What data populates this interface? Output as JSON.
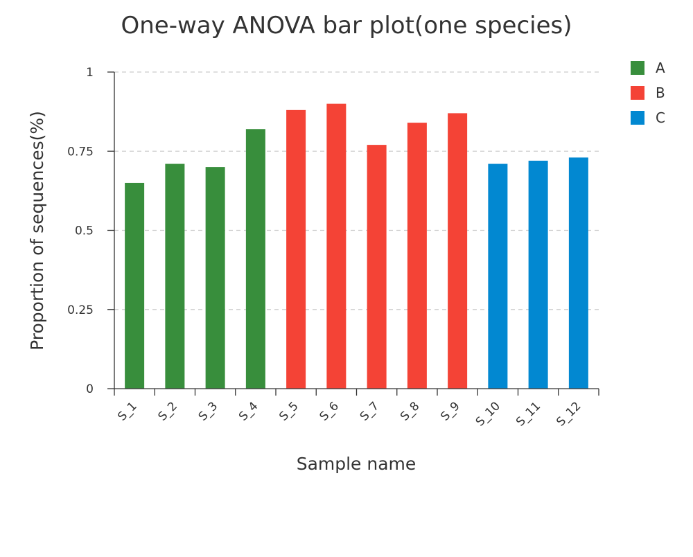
{
  "chart_data": {
    "type": "bar",
    "title": "One-way ANOVA bar plot(one species)",
    "xlabel": "Sample name",
    "ylabel": "Proportion of sequences(%)",
    "ylim": [
      0,
      1
    ],
    "yticks": [
      0,
      0.25,
      0.5,
      0.75,
      1
    ],
    "ytick_labels": [
      "0",
      "0.25",
      "0.5",
      "0.75",
      "1"
    ],
    "grid": "horizontal dashed",
    "legend_position": "top-right",
    "categories": [
      "S_1",
      "S_2",
      "S_3",
      "S_4",
      "S_5",
      "S_6",
      "S_7",
      "S_8",
      "S_9",
      "S_10",
      "S_11",
      "S_12"
    ],
    "values": [
      0.65,
      0.71,
      0.7,
      0.82,
      0.88,
      0.9,
      0.77,
      0.84,
      0.87,
      0.71,
      0.72,
      0.73
    ],
    "groups": [
      "A",
      "A",
      "A",
      "A",
      "B",
      "B",
      "B",
      "B",
      "B",
      "C",
      "C",
      "C"
    ],
    "legend": [
      {
        "name": "A",
        "color": "#388e3c"
      },
      {
        "name": "B",
        "color": "#f44336"
      },
      {
        "name": "C",
        "color": "#0288d1"
      }
    ]
  }
}
